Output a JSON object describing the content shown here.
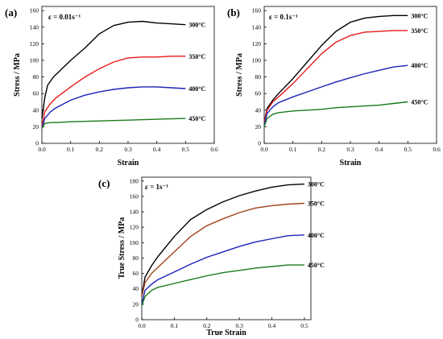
{
  "chart_data": [
    {
      "type": "line",
      "panel_label": "(a)",
      "rate_label": "ε = 0.01s⁻¹",
      "xlabel": "Strain",
      "ylabel": "Stress / MPa",
      "xlim": [
        0,
        0.6
      ],
      "ylim": [
        0,
        165
      ],
      "xticks": [
        "0.0",
        "0.1",
        "0.2",
        "0.3",
        "0.4",
        "0.5",
        "0.6"
      ],
      "yticks": [
        "0",
        "20",
        "40",
        "60",
        "80",
        "100",
        "120",
        "140",
        "160"
      ],
      "series": [
        {
          "name": "300°C",
          "color": "#000000",
          "points": [
            [
              0,
              30
            ],
            [
              0.01,
              55
            ],
            [
              0.02,
              70
            ],
            [
              0.04,
              80
            ],
            [
              0.07,
              90
            ],
            [
              0.1,
              100
            ],
            [
              0.15,
              115
            ],
            [
              0.2,
              132
            ],
            [
              0.25,
              142
            ],
            [
              0.3,
              146
            ],
            [
              0.35,
              147
            ],
            [
              0.4,
              145
            ],
            [
              0.45,
              144
            ],
            [
              0.5,
              143
            ]
          ]
        },
        {
          "name": "350°C",
          "color": "#e8191a",
          "points": [
            [
              0,
              20
            ],
            [
              0.01,
              38
            ],
            [
              0.03,
              48
            ],
            [
              0.05,
              55
            ],
            [
              0.1,
              68
            ],
            [
              0.15,
              80
            ],
            [
              0.2,
              90
            ],
            [
              0.25,
              98
            ],
            [
              0.3,
              103
            ],
            [
              0.35,
              104
            ],
            [
              0.4,
              104
            ],
            [
              0.45,
              105
            ],
            [
              0.5,
              105
            ]
          ]
        },
        {
          "name": "400°C",
          "color": "#1a22b8",
          "points": [
            [
              0,
              18
            ],
            [
              0.01,
              30
            ],
            [
              0.03,
              38
            ],
            [
              0.05,
              43
            ],
            [
              0.1,
              52
            ],
            [
              0.15,
              58
            ],
            [
              0.2,
              62
            ],
            [
              0.25,
              65
            ],
            [
              0.3,
              67
            ],
            [
              0.35,
              68
            ],
            [
              0.4,
              68
            ],
            [
              0.45,
              67
            ],
            [
              0.5,
              66
            ]
          ]
        },
        {
          "name": "450°C",
          "color": "#1a7a1a",
          "points": [
            [
              0,
              18
            ],
            [
              0.01,
              24
            ],
            [
              0.03,
              25
            ],
            [
              0.05,
              25
            ],
            [
              0.1,
              26
            ],
            [
              0.2,
              27
            ],
            [
              0.3,
              28
            ],
            [
              0.4,
              29
            ],
            [
              0.5,
              30
            ]
          ]
        }
      ]
    },
    {
      "type": "line",
      "panel_label": "(b)",
      "rate_label": "ε = 0.1s⁻¹",
      "xlabel": "Strain",
      "ylabel": "Stress / MPa",
      "xlim": [
        0,
        0.6
      ],
      "ylim": [
        0,
        165
      ],
      "xticks": [
        "0.0",
        "0.1",
        "0.2",
        "0.3",
        "0.4",
        "0.5",
        "0.6"
      ],
      "yticks": [
        "0",
        "20",
        "40",
        "60",
        "80",
        "100",
        "120",
        "140",
        "160"
      ],
      "series": [
        {
          "name": "300°C",
          "color": "#000000",
          "points": [
            [
              0,
              25
            ],
            [
              0.01,
              42
            ],
            [
              0.03,
              52
            ],
            [
              0.05,
              60
            ],
            [
              0.1,
              78
            ],
            [
              0.15,
              98
            ],
            [
              0.2,
              118
            ],
            [
              0.25,
              135
            ],
            [
              0.3,
              146
            ],
            [
              0.35,
              151
            ],
            [
              0.4,
              153
            ],
            [
              0.45,
              154
            ],
            [
              0.5,
              154
            ]
          ]
        },
        {
          "name": "350°C",
          "color": "#e8191a",
          "points": [
            [
              0,
              25
            ],
            [
              0.01,
              40
            ],
            [
              0.03,
              50
            ],
            [
              0.05,
              56
            ],
            [
              0.1,
              72
            ],
            [
              0.15,
              90
            ],
            [
              0.2,
              108
            ],
            [
              0.25,
              122
            ],
            [
              0.3,
              130
            ],
            [
              0.35,
              134
            ],
            [
              0.4,
              135
            ],
            [
              0.45,
              136
            ],
            [
              0.5,
              136
            ]
          ]
        },
        {
          "name": "400°C",
          "color": "#1a22b8",
          "points": [
            [
              0,
              22
            ],
            [
              0.01,
              36
            ],
            [
              0.03,
              44
            ],
            [
              0.05,
              49
            ],
            [
              0.1,
              56
            ],
            [
              0.15,
              62
            ],
            [
              0.2,
              68
            ],
            [
              0.25,
              74
            ],
            [
              0.3,
              79
            ],
            [
              0.35,
              84
            ],
            [
              0.4,
              88
            ],
            [
              0.45,
              92
            ],
            [
              0.5,
              94
            ]
          ]
        },
        {
          "name": "450°C",
          "color": "#1a7a1a",
          "points": [
            [
              0,
              20
            ],
            [
              0.01,
              30
            ],
            [
              0.03,
              35
            ],
            [
              0.05,
              37
            ],
            [
              0.1,
              39
            ],
            [
              0.15,
              40
            ],
            [
              0.2,
              41
            ],
            [
              0.25,
              43
            ],
            [
              0.3,
              44
            ],
            [
              0.35,
              45
            ],
            [
              0.4,
              46
            ],
            [
              0.45,
              48
            ],
            [
              0.5,
              50
            ]
          ]
        }
      ]
    },
    {
      "type": "line",
      "panel_label": "(c)",
      "rate_label": "ε = 1s⁻¹",
      "xlabel": "True Strain",
      "ylabel": "True Stress / MPa",
      "xlim": [
        0,
        0.52
      ],
      "ylim": [
        0,
        185
      ],
      "xticks": [
        "0.0",
        "0.1",
        "0.2",
        "0.3",
        "0.4",
        "0.5"
      ],
      "yticks": [
        "0",
        "20",
        "40",
        "60",
        "80",
        "100",
        "120",
        "140",
        "160",
        "180"
      ],
      "series": [
        {
          "name": "300°C",
          "color": "#000000",
          "points": [
            [
              0,
              30
            ],
            [
              0.01,
              55
            ],
            [
              0.03,
              70
            ],
            [
              0.05,
              82
            ],
            [
              0.1,
              108
            ],
            [
              0.15,
              130
            ],
            [
              0.2,
              143
            ],
            [
              0.25,
              153
            ],
            [
              0.3,
              161
            ],
            [
              0.35,
              167
            ],
            [
              0.4,
              172
            ],
            [
              0.45,
              175
            ],
            [
              0.5,
              176
            ]
          ]
        },
        {
          "name": "350°C",
          "color": "#a0421a",
          "points": [
            [
              0,
              30
            ],
            [
              0.01,
              48
            ],
            [
              0.03,
              60
            ],
            [
              0.05,
              68
            ],
            [
              0.1,
              88
            ],
            [
              0.15,
              108
            ],
            [
              0.2,
              122
            ],
            [
              0.25,
              131
            ],
            [
              0.3,
              139
            ],
            [
              0.35,
              145
            ],
            [
              0.4,
              148
            ],
            [
              0.45,
              150
            ],
            [
              0.5,
              151
            ]
          ]
        },
        {
          "name": "400°C",
          "color": "#1a22b8",
          "points": [
            [
              0,
              20
            ],
            [
              0.01,
              38
            ],
            [
              0.03,
              46
            ],
            [
              0.05,
              52
            ],
            [
              0.1,
              62
            ],
            [
              0.15,
              72
            ],
            [
              0.2,
              81
            ],
            [
              0.25,
              88
            ],
            [
              0.3,
              95
            ],
            [
              0.35,
              101
            ],
            [
              0.4,
              105
            ],
            [
              0.45,
              109
            ],
            [
              0.5,
              110
            ]
          ]
        },
        {
          "name": "450°C",
          "color": "#1a7a1a",
          "points": [
            [
              0,
              18
            ],
            [
              0.01,
              30
            ],
            [
              0.03,
              38
            ],
            [
              0.05,
              42
            ],
            [
              0.1,
              47
            ],
            [
              0.15,
              52
            ],
            [
              0.2,
              57
            ],
            [
              0.25,
              61
            ],
            [
              0.3,
              64
            ],
            [
              0.35,
              67
            ],
            [
              0.4,
              69
            ],
            [
              0.45,
              71
            ],
            [
              0.5,
              71
            ]
          ]
        }
      ]
    }
  ]
}
